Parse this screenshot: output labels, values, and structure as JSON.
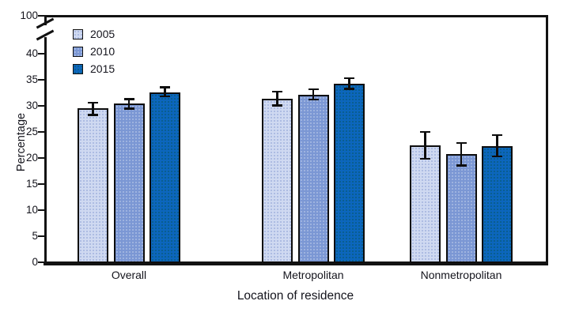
{
  "chart_data": {
    "type": "bar",
    "title": "",
    "xlabel": "Location of residence",
    "ylabel": "Percentage",
    "categories": [
      "Overall",
      "Metropolitan",
      "Nonmetropolitan"
    ],
    "series": [
      {
        "name": "2005",
        "color": "#cfd9f1",
        "values": [
          29.5,
          31.4,
          22.4
        ],
        "ci_low": [
          28.3,
          30.1,
          19.9
        ],
        "ci_high": [
          30.6,
          32.7,
          25.0
        ]
      },
      {
        "name": "2010",
        "color": "#7b97d4",
        "values": [
          30.4,
          32.1,
          20.8
        ],
        "ci_low": [
          29.5,
          31.2,
          18.6
        ],
        "ci_high": [
          31.3,
          33.2,
          22.9
        ]
      },
      {
        "name": "2015",
        "color": "#0c66bd",
        "values": [
          32.6,
          34.2,
          22.3
        ],
        "ci_low": [
          31.8,
          33.3,
          20.3
        ],
        "ci_high": [
          33.6,
          35.3,
          24.4
        ]
      }
    ],
    "error_bars": true,
    "legend_position": "top-left-inside",
    "grid": false,
    "y_axis": {
      "ticks": [
        0,
        5,
        10,
        15,
        20,
        25,
        30,
        35,
        40
      ],
      "axis_break": true,
      "break_top_label": 100,
      "ylim_display": [
        0,
        42
      ]
    },
    "axis_color": "#121212"
  }
}
